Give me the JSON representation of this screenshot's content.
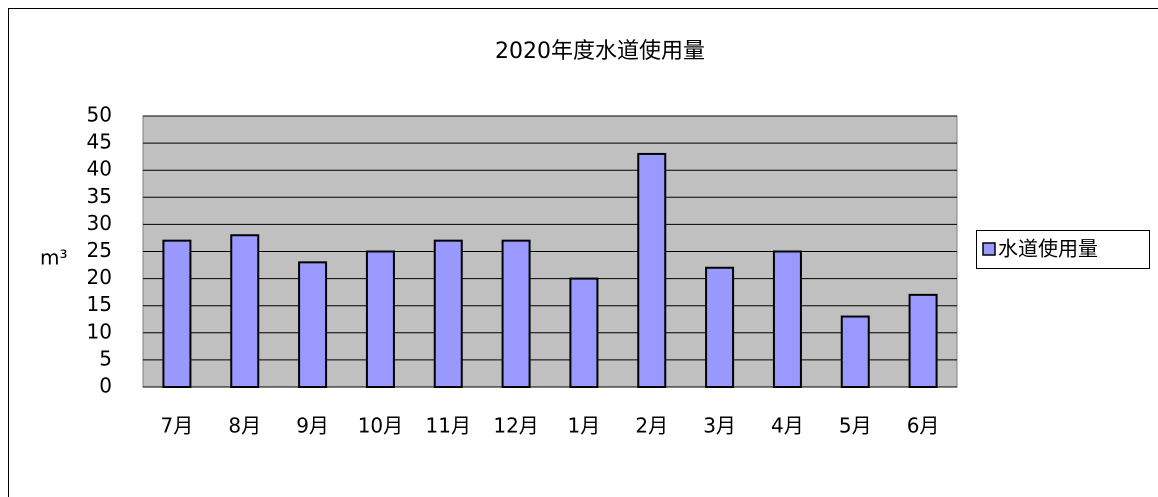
{
  "chart_data": {
    "type": "bar",
    "title": "2020年度水道使用量",
    "y_label": "m³",
    "categories": [
      "7月",
      "8月",
      "9月",
      "10月",
      "11月",
      "12月",
      "1月",
      "2月",
      "3月",
      "4月",
      "5月",
      "6月"
    ],
    "series": [
      {
        "name": "水道使用量",
        "color": "#9999ff",
        "values": [
          27,
          28,
          23,
          25,
          27,
          27,
          20,
          43,
          22,
          25,
          13,
          17
        ]
      }
    ],
    "ylim": [
      0,
      50
    ],
    "yticks": [
      0,
      5,
      10,
      15,
      20,
      25,
      30,
      35,
      40,
      45,
      50
    ],
    "grid": true,
    "legend": "right"
  }
}
